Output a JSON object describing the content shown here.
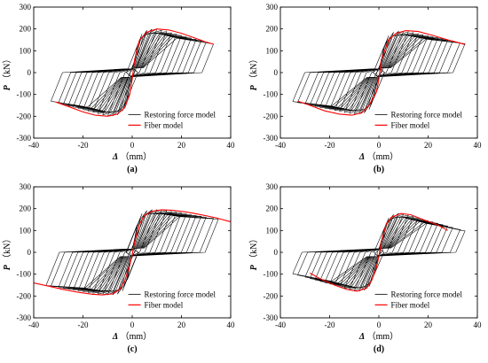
{
  "chart_data": [
    {
      "type": "line",
      "panel_label": "(a)",
      "xlabel_symbol": "Δ",
      "xlabel_unit": "（mm）",
      "ylabel_symbol": "P",
      "ylabel_unit": "（kN）",
      "xlim": [
        -40,
        40
      ],
      "ylim": [
        -300,
        300
      ],
      "xticks": [
        -40,
        -20,
        0,
        20,
        40
      ],
      "yticks": [
        -300,
        -200,
        -100,
        0,
        100,
        200,
        300
      ],
      "grid": false,
      "legend_position": "lower-right",
      "series": [
        {
          "name": "Restoring force model",
          "color": "#000000",
          "amplitudes": [
            2,
            4,
            6,
            8,
            10,
            12,
            14,
            16,
            18,
            20,
            22,
            24,
            26,
            28,
            30,
            33
          ],
          "loading": {
            "k0": 70,
            "peak": 200,
            "d_peak": 10,
            "residual": 125,
            "d_ult": 35
          },
          "unload_stiffness": 28,
          "pinch_load": 45
        },
        {
          "name": "Fiber model",
          "color": "#ff0000",
          "x": [
            -31,
            -26,
            -20,
            -15,
            -10,
            -6,
            -3,
            -1,
            0,
            1,
            3,
            6,
            10,
            15,
            20,
            25,
            30,
            33
          ],
          "y": [
            -135,
            -155,
            -180,
            -195,
            -200,
            -190,
            -160,
            -100,
            -30,
            60,
            150,
            185,
            200,
            195,
            180,
            160,
            140,
            130
          ]
        }
      ]
    },
    {
      "type": "line",
      "panel_label": "(b)",
      "xlabel_symbol": "Δ",
      "xlabel_unit": "（mm）",
      "ylabel_symbol": "P",
      "ylabel_unit": "（kN）",
      "xlim": [
        -40,
        40
      ],
      "ylim": [
        -300,
        300
      ],
      "xticks": [
        -40,
        -20,
        0,
        20,
        40
      ],
      "yticks": [
        -300,
        -200,
        -100,
        0,
        100,
        200,
        300
      ],
      "grid": false,
      "legend_position": "lower-right",
      "series": [
        {
          "name": "Restoring force model",
          "color": "#000000",
          "amplitudes": [
            2,
            4,
            6,
            8,
            10,
            12,
            14,
            16,
            18,
            20,
            22,
            24,
            26,
            28,
            30,
            33,
            35
          ],
          "loading": {
            "k0": 68,
            "peak": 190,
            "d_peak": 11,
            "residual": 130,
            "d_ult": 36
          },
          "unload_stiffness": 27,
          "pinch_load": 45
        },
        {
          "name": "Fiber model",
          "color": "#ff0000",
          "x": [
            -33,
            -28,
            -22,
            -16,
            -11,
            -7,
            -4,
            -1,
            0,
            1,
            4,
            7,
            11,
            16,
            22,
            28,
            33,
            35
          ],
          "y": [
            -130,
            -150,
            -175,
            -190,
            -195,
            -185,
            -150,
            -90,
            -30,
            60,
            150,
            180,
            192,
            188,
            170,
            150,
            135,
            128
          ]
        }
      ]
    },
    {
      "type": "line",
      "panel_label": "(c)",
      "xlabel_symbol": "Δ",
      "xlabel_unit": "（mm）",
      "ylabel_symbol": "P",
      "ylabel_unit": "（kN）",
      "xlim": [
        -40,
        40
      ],
      "ylim": [
        -300,
        300
      ],
      "xticks": [
        -40,
        -20,
        0,
        20,
        40
      ],
      "yticks": [
        -300,
        -200,
        -100,
        0,
        100,
        200,
        300
      ],
      "grid": false,
      "legend_position": "lower-right",
      "series": [
        {
          "name": "Restoring force model",
          "color": "#000000",
          "amplitudes": [
            2,
            4,
            6,
            8,
            10,
            12,
            14,
            16,
            18,
            20,
            22,
            24,
            26,
            28,
            30,
            33,
            35
          ],
          "loading": {
            "k0": 75,
            "peak": 195,
            "d_peak": 12,
            "residual": 150,
            "d_ult": 36
          },
          "unload_stiffness": 28,
          "pinch_load": 40
        },
        {
          "name": "Fiber model",
          "color": "#ff0000",
          "x": [
            -40,
            -34,
            -28,
            -22,
            -16,
            -12,
            -8,
            -5,
            -3,
            -1,
            0,
            1,
            3,
            5,
            8,
            12,
            16,
            22,
            28,
            34,
            40
          ],
          "y": [
            -140,
            -155,
            -170,
            -183,
            -192,
            -195,
            -190,
            -170,
            -130,
            -60,
            -10,
            50,
            130,
            170,
            188,
            195,
            193,
            185,
            172,
            158,
            140
          ]
        }
      ]
    },
    {
      "type": "line",
      "panel_label": "(d)",
      "xlabel_symbol": "Δ",
      "xlabel_unit": "（mm）",
      "ylabel_symbol": "P",
      "ylabel_unit": "（kN）",
      "xlim": [
        -40,
        40
      ],
      "ylim": [
        -300,
        300
      ],
      "xticks": [
        -40,
        -20,
        0,
        20,
        40
      ],
      "yticks": [
        -300,
        -200,
        -100,
        0,
        100,
        200,
        300
      ],
      "grid": false,
      "legend_position": "lower-right",
      "series": [
        {
          "name": "Restoring force model",
          "color": "#000000",
          "amplitudes": [
            2,
            4,
            6,
            8,
            10,
            12,
            14,
            16,
            18,
            20,
            22,
            24,
            26,
            28,
            30,
            33,
            35
          ],
          "loading": {
            "k0": 60,
            "peak": 180,
            "d_peak": 9,
            "residual": 95,
            "d_ult": 36
          },
          "unload_stiffness": 26,
          "pinch_load": 40
        },
        {
          "name": "Fiber model",
          "color": "#ff0000",
          "x": [
            -28,
            -24,
            -18,
            -13,
            -9,
            -5,
            -3,
            -1,
            0,
            1,
            3,
            5,
            9,
            13,
            18,
            24,
            28
          ],
          "y": [
            -95,
            -120,
            -150,
            -170,
            -178,
            -165,
            -130,
            -70,
            -20,
            50,
            130,
            160,
            178,
            172,
            150,
            125,
            100
          ]
        }
      ]
    }
  ]
}
